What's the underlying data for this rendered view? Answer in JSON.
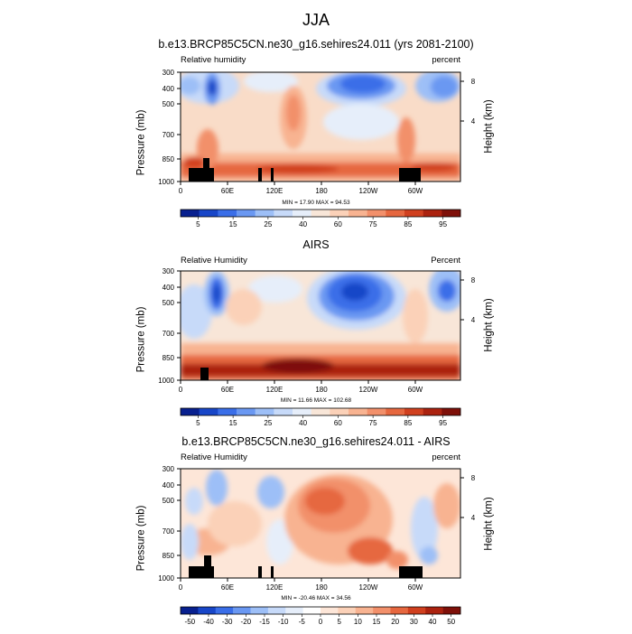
{
  "page_title": "JJA",
  "chart_data": [
    {
      "type": "heatmap",
      "title": "b.e13.BRCP85C5CN.ne30_g16.sehires24.011 (yrs 2081-2100)",
      "left_label": "Relative humidity",
      "right_label": "percent",
      "ylabel": "Pressure (mb)",
      "ylabel_right": "Height (km)",
      "x_ticks": [
        "0",
        "60E",
        "120E",
        "180",
        "120W",
        "60W"
      ],
      "y_ticks": [
        "300",
        "400",
        "500",
        "700",
        "850",
        "1000"
      ],
      "y_ticks_right": [
        "8",
        "4"
      ],
      "stats": "MIN = 17.90  MAX = 94.53",
      "colorbar_labels": [
        "5",
        "15",
        "25",
        "40",
        "60",
        "75",
        "85",
        "95"
      ]
    },
    {
      "type": "heatmap",
      "title": "AIRS",
      "left_label": "Relative Humidity",
      "right_label": "Percent",
      "ylabel": "Pressure (mb)",
      "ylabel_right": "Height (km)",
      "x_ticks": [
        "0",
        "60E",
        "120E",
        "180",
        "120W",
        "60W"
      ],
      "y_ticks": [
        "300",
        "400",
        "500",
        "700",
        "850",
        "1000"
      ],
      "y_ticks_right": [
        "8",
        "4"
      ],
      "stats": "MIN = 11.66  MAX = 102.68",
      "colorbar_labels": [
        "5",
        "15",
        "25",
        "40",
        "60",
        "75",
        "85",
        "95"
      ]
    },
    {
      "type": "heatmap",
      "title": "b.e13.BRCP85C5CN.ne30_g16.sehires24.011 - AIRS",
      "left_label": "Relative Humidity",
      "right_label": "percent",
      "ylabel": "Pressure (mb)",
      "ylabel_right": "Height (km)",
      "x_ticks": [
        "0",
        "60E",
        "120E",
        "180",
        "120W",
        "60W"
      ],
      "y_ticks": [
        "300",
        "400",
        "500",
        "700",
        "850",
        "1000"
      ],
      "y_ticks_right": [
        "8",
        "4"
      ],
      "stats": "MIN = -20.46  MAX = 34.56",
      "colorbar_labels": [
        "-50",
        "-40",
        "-30",
        "-20",
        "-15",
        "-10",
        "-5",
        "0",
        "5",
        "10",
        "15",
        "20",
        "30",
        "40",
        "50"
      ]
    }
  ],
  "colors": {
    "levels_abs": [
      "#08208f",
      "#1846c8",
      "#3a6ee8",
      "#6a98f2",
      "#9dbff7",
      "#c7daf9",
      "#e6eefa",
      "#f8e6d8",
      "#fbd1b8",
      "#f8b391",
      "#f2906b",
      "#e6673f",
      "#d0401f",
      "#ab220f",
      "#7e1009"
    ],
    "levels_diff": [
      "#08208f",
      "#1846c8",
      "#3a6ee8",
      "#6a98f2",
      "#9dbff7",
      "#c7daf9",
      "#e6eefa",
      "#ffffff",
      "#fde6d8",
      "#fbd1b8",
      "#f8b391",
      "#f2906b",
      "#e6673f",
      "#d0401f",
      "#ab220f",
      "#7e1009"
    ]
  }
}
